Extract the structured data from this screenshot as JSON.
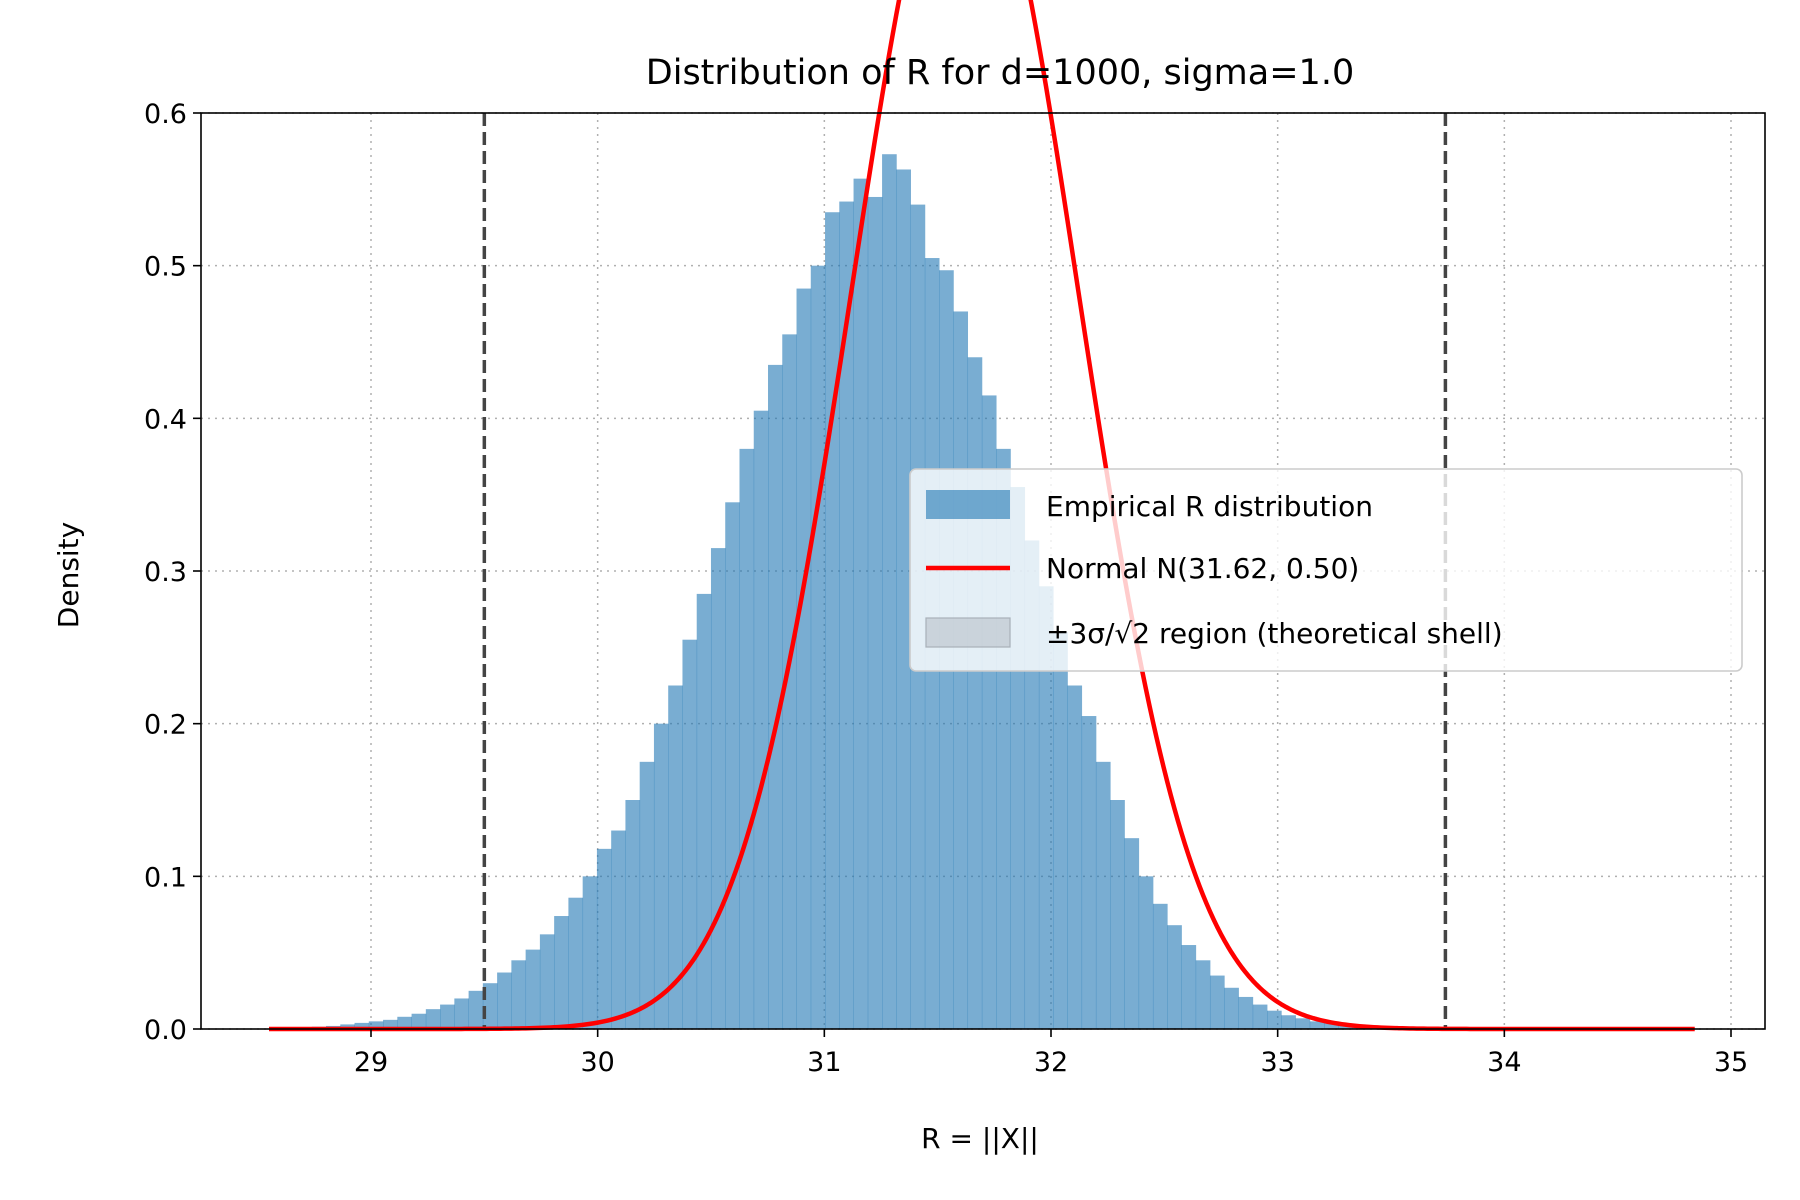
{
  "chart_data": {
    "type": "histogram",
    "title": "Distribution of R for d=1000, sigma=1.0",
    "xlabel": "R = ||X||",
    "ylabel": "Density",
    "xlim": [
      28.25,
      35.15
    ],
    "ylim": [
      0,
      0.6
    ],
    "xticks": [
      29,
      30,
      31,
      32,
      33,
      34,
      35
    ],
    "yticks": [
      0.0,
      0.1,
      0.2,
      0.3,
      0.4,
      0.5,
      0.6
    ],
    "xtick_labels": [
      "29",
      "30",
      "31",
      "32",
      "33",
      "34",
      "35"
    ],
    "ytick_labels": [
      "0.0",
      "0.1",
      "0.2",
      "0.3",
      "0.4",
      "0.5",
      "0.6"
    ],
    "grid": true,
    "histogram": {
      "name": "Empirical R distribution",
      "color": "#1f77b4",
      "bin_start": 28.55,
      "bin_width": 0.0629,
      "densities": [
        0.0005,
        0.0005,
        0.001,
        0.0015,
        0.002,
        0.003,
        0.004,
        0.005,
        0.006,
        0.008,
        0.01,
        0.013,
        0.016,
        0.02,
        0.025,
        0.03,
        0.037,
        0.045,
        0.052,
        0.062,
        0.074,
        0.086,
        0.1,
        0.118,
        0.13,
        0.15,
        0.175,
        0.2,
        0.225,
        0.255,
        0.285,
        0.315,
        0.345,
        0.38,
        0.405,
        0.435,
        0.455,
        0.485,
        0.5,
        0.535,
        0.542,
        0.557,
        0.545,
        0.573,
        0.563,
        0.54,
        0.505,
        0.497,
        0.47,
        0.44,
        0.415,
        0.38,
        0.355,
        0.32,
        0.29,
        0.26,
        0.225,
        0.205,
        0.175,
        0.15,
        0.125,
        0.1,
        0.082,
        0.068,
        0.055,
        0.045,
        0.035,
        0.027,
        0.021,
        0.016,
        0.012,
        0.009,
        0.007,
        0.005,
        0.004,
        0.003,
        0.002,
        0.0015,
        0.001,
        0.0008,
        0.0005,
        0.0005,
        0.0003,
        0.0003,
        0.0002,
        0.0002,
        0.0001,
        0.0001,
        0.0001,
        0.0001
      ]
    },
    "normal_curve": {
      "name": "Normal N(31.62, 0.50)",
      "mean": 31.62,
      "std": 0.5,
      "x_range": [
        28.55,
        34.84
      ],
      "color": "#ff0000"
    },
    "shell_region": {
      "name": "±3σ/√2 region (theoretical shell)",
      "lower": 29.5,
      "upper": 33.74,
      "color": "#444444"
    },
    "legend": {
      "position": "center-right",
      "entries": [
        "Empirical R distribution",
        "Normal N(31.62, 0.50)",
        "±3σ/√2 region (theoretical shell)"
      ]
    }
  }
}
